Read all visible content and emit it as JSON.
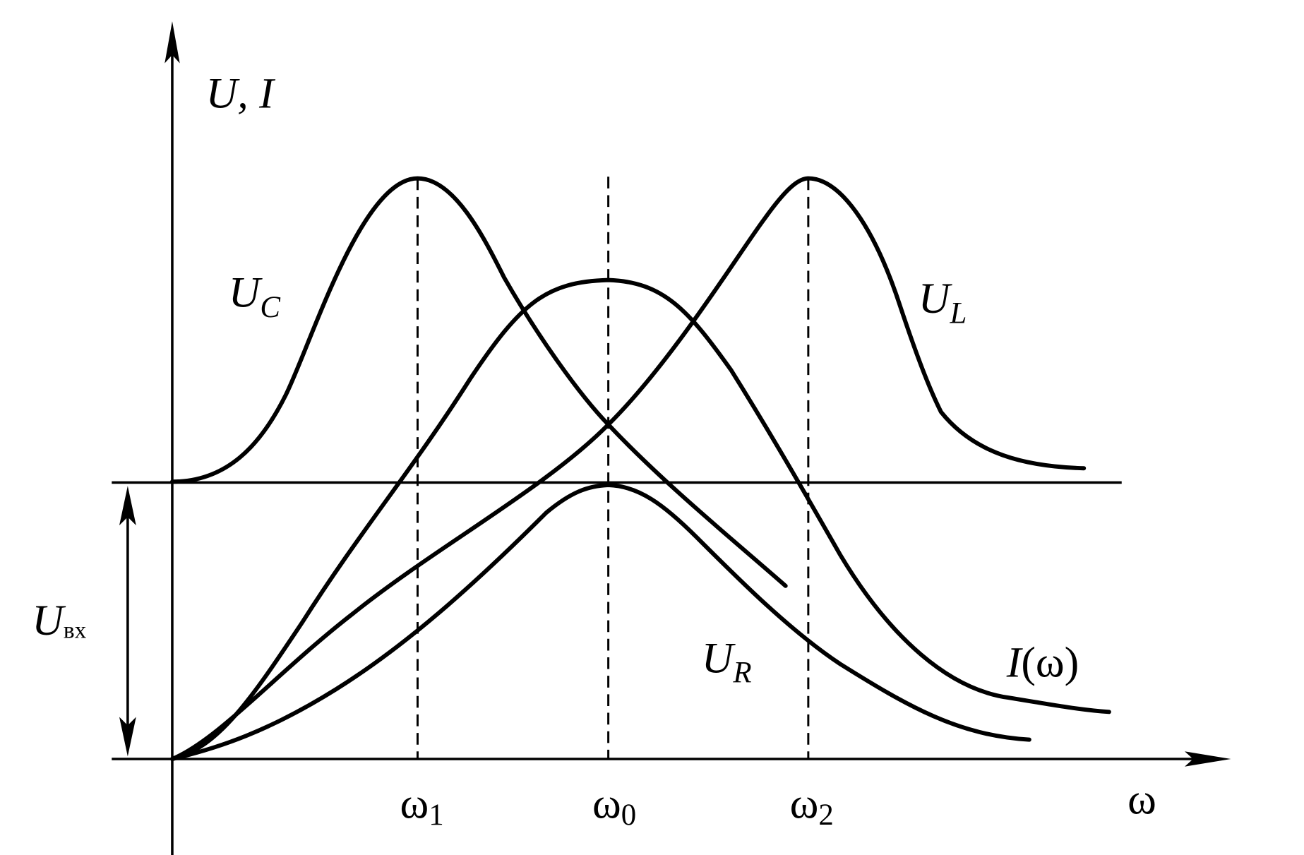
{
  "axes": {
    "y_label": "U, I",
    "x_label": "ω"
  },
  "curves": [
    {
      "label": "U",
      "sub": "C"
    },
    {
      "label": "U",
      "sub": "L"
    },
    {
      "label": "U",
      "sub": "R"
    }
  ],
  "current_label": {
    "label": "I",
    "rest": "(ω)"
  },
  "input_level": {
    "label": "U",
    "sub": "вх"
  },
  "frequencies": [
    {
      "label": "ω",
      "sub": "1"
    },
    {
      "label": "ω",
      "sub": "0"
    },
    {
      "label": "ω",
      "sub": "2"
    }
  ]
}
